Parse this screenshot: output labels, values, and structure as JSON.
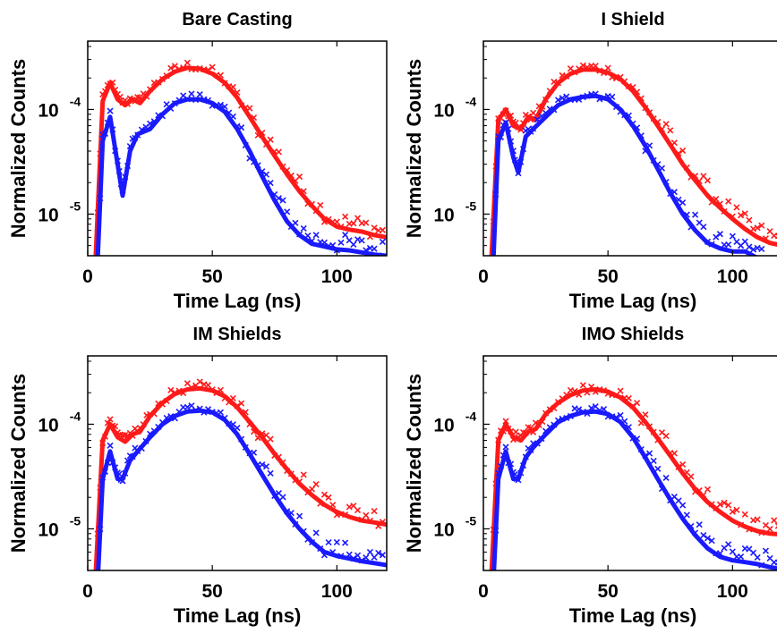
{
  "colors": {
    "series_a": "#ff1a1a",
    "series_b": "#1a1aff",
    "axis": "#000000"
  },
  "chart_data": [
    {
      "type": "line",
      "title": "Bare Casting",
      "xlabel": "Time Lag (ns)",
      "ylabel": "Normalized Counts",
      "xlim": [
        0,
        120
      ],
      "ylim": [
        4e-06,
        0.00045
      ],
      "yscale": "log",
      "grid": false,
      "x_ticks": [
        "0",
        "50",
        "100"
      ],
      "y_ticks": [
        {
          "base": "10",
          "exp": "-4"
        },
        {
          "base": "10",
          "exp": "-5"
        }
      ],
      "series": [
        {
          "color": "red",
          "style": "solid line + x markers",
          "x": [
            3,
            6,
            9,
            12,
            15,
            18,
            21,
            25,
            30,
            35,
            40,
            45,
            50,
            55,
            60,
            65,
            70,
            75,
            80,
            85,
            90,
            95,
            100,
            105,
            110,
            115,
            120
          ],
          "values": [
            3e-06,
            0.00012,
            0.00018,
            0.000125,
            0.00011,
            0.000125,
            0.000115,
            0.00015,
            0.000195,
            0.00023,
            0.00025,
            0.000245,
            0.00022,
            0.00018,
            0.00013,
            8.5e-05,
            5.5e-05,
            3.6e-05,
            2.4e-05,
            1.65e-05,
            1.2e-05,
            9e-06,
            7.6e-06,
            7.1e-06,
            6.8e-06,
            6.3e-06,
            6e-06
          ]
        },
        {
          "color": "blue",
          "style": "solid line + x markers",
          "x": [
            3,
            6,
            9,
            12,
            14,
            17,
            20,
            25,
            30,
            35,
            40,
            45,
            50,
            55,
            60,
            65,
            70,
            75,
            80,
            85,
            90,
            95,
            100,
            105,
            110,
            115,
            120
          ],
          "values": [
            1e-06,
            5e-05,
            8.5e-05,
            3e-05,
            1.5e-05,
            4e-05,
            5.8e-05,
            6.5e-05,
            9e-05,
            0.000115,
            0.000125,
            0.000125,
            0.000115,
            9.5e-05,
            6.5e-05,
            4e-05,
            2.3e-05,
            1.35e-05,
            8.5e-06,
            6.3e-06,
            5.2e-06,
            4.9e-06,
            4.6e-06,
            4.5e-06,
            4.3e-06,
            4.1e-06,
            4e-06
          ]
        }
      ]
    },
    {
      "type": "line",
      "title": "I Shield",
      "xlabel": "Time Lag (ns)",
      "ylabel": "Normalized Counts",
      "xlim": [
        0,
        120
      ],
      "ylim": [
        4e-06,
        0.00045
      ],
      "yscale": "log",
      "grid": false,
      "x_ticks": [
        "0",
        "50",
        "100"
      ],
      "y_ticks": [
        {
          "base": "10",
          "exp": "-4"
        },
        {
          "base": "10",
          "exp": "-5"
        }
      ],
      "series": [
        {
          "color": "red",
          "style": "solid line + x markers",
          "x": [
            3,
            6,
            9,
            12,
            15,
            18,
            21,
            25,
            30,
            35,
            40,
            45,
            50,
            55,
            60,
            65,
            70,
            75,
            80,
            85,
            90,
            95,
            100,
            105,
            110,
            115,
            120
          ],
          "values": [
            3e-06,
            8e-05,
            0.0001,
            7e-05,
            6.5e-05,
            8.5e-05,
            8e-05,
            0.000125,
            0.00018,
            0.00022,
            0.00024,
            0.00024,
            0.000225,
            0.000195,
            0.00015,
            0.000105,
            7e-05,
            4.6e-05,
            3e-05,
            2.1e-05,
            1.5e-05,
            1.15e-05,
            9e-06,
            7.2e-06,
            6e-06,
            5.3e-06,
            5e-06
          ]
        },
        {
          "color": "blue",
          "style": "solid line + x markers",
          "x": [
            3,
            6,
            9,
            12,
            14,
            17,
            20,
            25,
            30,
            35,
            40,
            45,
            50,
            55,
            60,
            65,
            70,
            75,
            80,
            85,
            90,
            95,
            100,
            105,
            110,
            115,
            120
          ],
          "values": [
            1e-06,
            5e-05,
            7.5e-05,
            3.5e-05,
            2.5e-05,
            5.5e-05,
            6.5e-05,
            8.5e-05,
            0.00011,
            0.000125,
            0.000132,
            0.000135,
            0.000125,
            0.0001,
            7e-05,
            4.5e-05,
            2.7e-05,
            1.6e-05,
            1e-05,
            7e-06,
            5.3e-06,
            4.7e-06,
            4.4e-06,
            4.4e-06,
            3.8e-06,
            3.5e-06,
            3.3e-06
          ]
        }
      ]
    },
    {
      "type": "line",
      "title": "IM Shields",
      "xlabel": "Time Lag (ns)",
      "ylabel": "Normalized Counts",
      "xlim": [
        0,
        120
      ],
      "ylim": [
        4e-06,
        0.00045
      ],
      "yscale": "log",
      "grid": false,
      "x_ticks": [
        "0",
        "50",
        "100"
      ],
      "y_ticks": [
        {
          "base": "10",
          "exp": "-4"
        },
        {
          "base": "10",
          "exp": "-5"
        }
      ],
      "series": [
        {
          "color": "red",
          "style": "solid line + x markers",
          "x": [
            3,
            6,
            9,
            12,
            15,
            18,
            21,
            25,
            30,
            35,
            40,
            45,
            50,
            55,
            60,
            65,
            70,
            75,
            80,
            85,
            90,
            95,
            100,
            105,
            110,
            115,
            120
          ],
          "values": [
            3e-06,
            7e-05,
            0.0001,
            7.5e-05,
            6.8e-05,
            8e-05,
            8.5e-05,
            0.00012,
            0.00016,
            0.000195,
            0.000215,
            0.00022,
            0.00021,
            0.000185,
            0.000145,
            0.000105,
            7.5e-05,
            5.2e-05,
            3.7e-05,
            2.7e-05,
            2.1e-05,
            1.7e-05,
            1.45e-05,
            1.3e-05,
            1.2e-05,
            1.15e-05,
            1.1e-05
          ]
        },
        {
          "color": "blue",
          "style": "solid line + x markers",
          "x": [
            3,
            6,
            9,
            12,
            14,
            17,
            20,
            25,
            30,
            35,
            40,
            45,
            50,
            55,
            60,
            65,
            70,
            75,
            80,
            85,
            90,
            95,
            100,
            105,
            110,
            115,
            120
          ],
          "values": [
            1e-06,
            3e-05,
            5.5e-05,
            3e-05,
            3e-05,
            4.5e-05,
            5.5e-05,
            7.5e-05,
            0.0001,
            0.00012,
            0.000132,
            0.000135,
            0.00013,
            0.00011,
            8e-05,
            5.2e-05,
            3.3e-05,
            2.1e-05,
            1.4e-05,
            1e-05,
            7.5e-06,
            6e-06,
            5.5e-06,
            5.2e-06,
            4.9e-06,
            4.7e-06,
            4.5e-06
          ]
        }
      ]
    },
    {
      "type": "line",
      "title": "IMO Shields",
      "xlabel": "Time Lag (ns)",
      "ylabel": "Normalized Counts",
      "xlim": [
        0,
        120
      ],
      "ylim": [
        4e-06,
        0.00045
      ],
      "yscale": "log",
      "grid": false,
      "x_ticks": [
        "0",
        "50",
        "100"
      ],
      "y_ticks": [
        {
          "base": "10",
          "exp": "-4"
        },
        {
          "base": "10",
          "exp": "-5"
        }
      ],
      "series": [
        {
          "color": "red",
          "style": "solid line + x markers",
          "x": [
            3,
            6,
            9,
            12,
            15,
            18,
            21,
            25,
            30,
            35,
            40,
            45,
            50,
            55,
            60,
            65,
            70,
            75,
            80,
            85,
            90,
            95,
            100,
            105,
            110,
            115,
            120
          ],
          "values": [
            3e-06,
            7e-05,
            0.0001,
            7.5e-05,
            7e-05,
            8.5e-05,
            9e-05,
            0.000125,
            0.00016,
            0.00019,
            0.00021,
            0.000215,
            0.000205,
            0.00018,
            0.000145,
            0.000105,
            7.3e-05,
            5e-05,
            3.4e-05,
            2.4e-05,
            1.8e-05,
            1.45e-05,
            1.2e-05,
            1.05e-05,
            9.5e-06,
            9e-06,
            8.8e-06
          ]
        },
        {
          "color": "blue",
          "style": "solid line + x markers",
          "x": [
            3,
            6,
            9,
            12,
            14,
            17,
            20,
            25,
            30,
            35,
            40,
            45,
            50,
            55,
            60,
            65,
            70,
            75,
            80,
            85,
            90,
            95,
            100,
            105,
            110,
            115,
            120
          ],
          "values": [
            1e-06,
            3e-05,
            5.5e-05,
            3e-05,
            3e-05,
            4.8e-05,
            6e-05,
            8e-05,
            0.000105,
            0.00012,
            0.00013,
            0.000132,
            0.000125,
            0.000105,
            7.5e-05,
            4.8e-05,
            3e-05,
            1.9e-05,
            1.25e-05,
            8.7e-06,
            6.5e-06,
            5.4e-06,
            5e-06,
            4.8e-06,
            4.6e-06,
            4.3e-06,
            4.1e-06
          ]
        }
      ]
    }
  ]
}
